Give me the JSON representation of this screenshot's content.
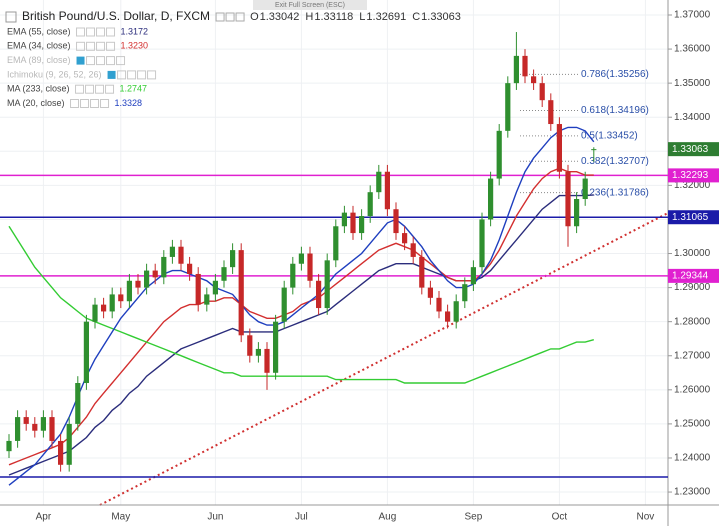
{
  "overlay": {
    "exit_hint": "Exit Full Screen (ESC)"
  },
  "chart_data": {
    "type": "candlestick",
    "title": "British Pound/U.S. Dollar, D, FXCM",
    "ohlc_labels": [
      "O",
      "H",
      "L",
      "C"
    ],
    "categories": [
      null,
      null,
      null,
      null,
      "Apr",
      null,
      null,
      null,
      null,
      null,
      null,
      null,
      null,
      "May",
      null,
      null,
      null,
      null,
      null,
      null,
      null,
      null,
      null,
      null,
      "Jun",
      null,
      null,
      null,
      null,
      null,
      null,
      null,
      null,
      null,
      "Jul",
      null,
      null,
      null,
      null,
      null,
      null,
      null,
      null,
      null,
      "Aug",
      null,
      null,
      null,
      null,
      null,
      null,
      null,
      null,
      null,
      "Sep",
      null,
      null,
      null,
      null,
      null,
      null,
      null,
      null,
      null,
      "Oct",
      null,
      null,
      null,
      null,
      null,
      null,
      null,
      null,
      null,
      "Nov",
      null,
      null
    ],
    "open": [
      1.242,
      1.245,
      1.252,
      1.25,
      1.248,
      1.252,
      1.245,
      1.238,
      1.25,
      1.262,
      1.28,
      1.285,
      1.283,
      1.288,
      1.286,
      1.292,
      1.29,
      1.295,
      1.293,
      1.299,
      1.302,
      1.297,
      1.294,
      1.285,
      1.288,
      1.292,
      1.296,
      1.301,
      1.276,
      1.27,
      1.272,
      1.265,
      1.28,
      1.29,
      1.297,
      1.3,
      1.292,
      1.284,
      1.298,
      1.308,
      1.312,
      1.306,
      1.311,
      1.318,
      1.324,
      1.313,
      1.306,
      1.303,
      1.299,
      1.29,
      1.287,
      1.283,
      1.28,
      1.286,
      1.291,
      1.296,
      1.31,
      1.322,
      1.336,
      1.35,
      1.358,
      1.352,
      1.35,
      1.345,
      1.338,
      1.324,
      1.308,
      1.316,
      1.33042,
      null,
      null,
      null,
      null,
      null,
      null,
      null,
      null
    ],
    "high": [
      1.247,
      1.254,
      1.254,
      1.252,
      1.254,
      1.254,
      1.247,
      1.252,
      1.264,
      1.282,
      1.287,
      1.287,
      1.29,
      1.29,
      1.294,
      1.294,
      1.297,
      1.297,
      1.301,
      1.304,
      1.304,
      1.299,
      1.296,
      1.29,
      1.294,
      1.298,
      1.303,
      1.303,
      1.278,
      1.274,
      1.274,
      1.282,
      1.292,
      1.299,
      1.302,
      1.302,
      1.294,
      1.3,
      1.31,
      1.314,
      1.314,
      1.313,
      1.32,
      1.326,
      1.326,
      1.315,
      1.308,
      1.305,
      1.301,
      1.292,
      1.289,
      1.285,
      1.288,
      1.293,
      1.298,
      1.312,
      1.324,
      1.338,
      1.352,
      1.365,
      1.36,
      1.354,
      1.352,
      1.347,
      1.34,
      1.326,
      1.318,
      1.324,
      1.33118,
      null,
      null,
      null,
      null,
      null,
      null,
      null,
      null
    ],
    "low": [
      1.24,
      1.243,
      1.248,
      1.246,
      1.246,
      1.243,
      1.236,
      1.236,
      1.248,
      1.26,
      1.278,
      1.281,
      1.281,
      1.284,
      1.284,
      1.288,
      1.288,
      1.291,
      1.291,
      1.297,
      1.295,
      1.292,
      1.283,
      1.283,
      1.286,
      1.29,
      1.294,
      1.274,
      1.268,
      1.268,
      1.26,
      1.263,
      1.278,
      1.288,
      1.295,
      1.29,
      1.282,
      1.282,
      1.296,
      1.306,
      1.304,
      1.304,
      1.309,
      1.316,
      1.311,
      1.304,
      1.301,
      1.297,
      1.288,
      1.285,
      1.281,
      1.278,
      1.278,
      1.284,
      1.289,
      1.294,
      1.308,
      1.32,
      1.334,
      1.348,
      1.35,
      1.348,
      1.343,
      1.336,
      1.322,
      1.302,
      1.306,
      1.314,
      1.32691,
      null,
      null,
      null,
      null,
      null,
      null,
      null,
      null
    ],
    "close": [
      1.245,
      1.252,
      1.25,
      1.248,
      1.252,
      1.245,
      1.238,
      1.25,
      1.262,
      1.28,
      1.285,
      1.283,
      1.288,
      1.286,
      1.292,
      1.29,
      1.295,
      1.293,
      1.299,
      1.302,
      1.297,
      1.294,
      1.285,
      1.288,
      1.292,
      1.296,
      1.301,
      1.276,
      1.27,
      1.272,
      1.265,
      1.28,
      1.29,
      1.297,
      1.3,
      1.292,
      1.284,
      1.298,
      1.308,
      1.312,
      1.306,
      1.311,
      1.318,
      1.324,
      1.313,
      1.306,
      1.303,
      1.299,
      1.29,
      1.287,
      1.283,
      1.28,
      1.286,
      1.291,
      1.296,
      1.31,
      1.322,
      1.336,
      1.35,
      1.358,
      1.352,
      1.35,
      1.345,
      1.338,
      1.324,
      1.308,
      1.316,
      1.322,
      1.33063,
      null,
      null,
      null,
      null,
      null,
      null,
      null,
      null
    ],
    "up_color": "#2f8f2f",
    "down_color": "#c62828",
    "last_color": "#2e7d32",
    "series": [
      {
        "name": "EMA (55, close)",
        "color": "#2b2d7c",
        "visible": true,
        "last": 1.3172,
        "values": [
          1.235,
          1.236,
          1.237,
          1.238,
          1.239,
          1.24,
          1.241,
          1.242,
          1.244,
          1.246,
          1.249,
          1.251,
          1.254,
          1.256,
          1.259,
          1.261,
          1.264,
          1.266,
          1.268,
          1.27,
          1.272,
          1.273,
          1.274,
          1.275,
          1.276,
          1.277,
          1.278,
          1.277,
          1.277,
          1.277,
          1.277,
          1.277,
          1.278,
          1.279,
          1.28,
          1.281,
          1.282,
          1.283,
          1.285,
          1.287,
          1.289,
          1.291,
          1.293,
          1.295,
          1.296,
          1.297,
          1.297,
          1.297,
          1.296,
          1.295,
          1.294,
          1.293,
          1.292,
          1.292,
          1.292,
          1.293,
          1.295,
          1.298,
          1.301,
          1.304,
          1.307,
          1.31,
          1.313,
          1.315,
          1.317,
          1.317,
          1.317,
          1.317,
          1.3172,
          null,
          null,
          null,
          null,
          null,
          null,
          null,
          null
        ]
      },
      {
        "name": "EMA (34, close)",
        "color": "#d32f2f",
        "visible": true,
        "last": {
          "value": 1.323,
          "label": "1.3230"
        },
        "values": [
          1.238,
          1.239,
          1.24,
          1.241,
          1.242,
          1.243,
          1.244,
          1.246,
          1.249,
          1.252,
          1.256,
          1.259,
          1.262,
          1.265,
          1.268,
          1.271,
          1.274,
          1.277,
          1.28,
          1.282,
          1.284,
          1.285,
          1.285,
          1.286,
          1.286,
          1.287,
          1.287,
          1.285,
          1.283,
          1.282,
          1.281,
          1.281,
          1.282,
          1.283,
          1.285,
          1.286,
          1.287,
          1.289,
          1.291,
          1.293,
          1.295,
          1.297,
          1.299,
          1.301,
          1.302,
          1.303,
          1.302,
          1.301,
          1.299,
          1.297,
          1.295,
          1.293,
          1.292,
          1.292,
          1.292,
          1.294,
          1.297,
          1.301,
          1.306,
          1.311,
          1.315,
          1.319,
          1.322,
          1.324,
          1.325,
          1.324,
          1.324,
          1.323,
          1.323,
          null,
          null,
          null,
          null,
          null,
          null,
          null,
          null
        ]
      },
      {
        "name": "EMA (89, close)",
        "color": "#b0b0b0",
        "visible": false
      },
      {
        "name": "Ichimoku (9, 26, 52, 26)",
        "color": "#b0b0b0",
        "visible": false
      },
      {
        "name": "MA (233, close)",
        "color": "#33cc33",
        "visible": true,
        "last": 1.2747,
        "values": [
          1.308,
          1.304,
          1.3,
          1.296,
          1.293,
          1.29,
          1.287,
          1.285,
          1.283,
          1.281,
          1.28,
          1.279,
          1.278,
          1.277,
          1.276,
          1.275,
          1.274,
          1.273,
          1.272,
          1.271,
          1.27,
          1.269,
          1.268,
          1.267,
          1.266,
          1.265,
          1.265,
          1.264,
          1.264,
          1.264,
          1.264,
          1.264,
          1.264,
          1.264,
          1.264,
          1.264,
          1.264,
          1.264,
          1.263,
          1.263,
          1.263,
          1.263,
          1.263,
          1.263,
          1.263,
          1.263,
          1.262,
          1.262,
          1.262,
          1.262,
          1.262,
          1.262,
          1.262,
          1.262,
          1.263,
          1.264,
          1.265,
          1.266,
          1.267,
          1.268,
          1.269,
          1.27,
          1.271,
          1.272,
          1.272,
          1.273,
          1.274,
          1.274,
          1.2747,
          null,
          null,
          null,
          null,
          null,
          null,
          null,
          null
        ]
      },
      {
        "name": "MA (20, close)",
        "color": "#1f3fbf",
        "visible": true,
        "last": 1.3328,
        "values": [
          1.232,
          1.234,
          1.236,
          1.238,
          1.241,
          1.244,
          1.247,
          1.252,
          1.258,
          1.264,
          1.269,
          1.273,
          1.277,
          1.281,
          1.284,
          1.287,
          1.29,
          1.292,
          1.294,
          1.295,
          1.295,
          1.294,
          1.293,
          1.292,
          1.29,
          1.289,
          1.288,
          1.285,
          1.282,
          1.28,
          1.279,
          1.279,
          1.28,
          1.282,
          1.284,
          1.286,
          1.288,
          1.291,
          1.294,
          1.296,
          1.298,
          1.3,
          1.303,
          1.306,
          1.309,
          1.31,
          1.308,
          1.305,
          1.302,
          1.298,
          1.295,
          1.292,
          1.29,
          1.29,
          1.291,
          1.294,
          1.298,
          1.304,
          1.311,
          1.318,
          1.324,
          1.328,
          1.331,
          1.334,
          1.336,
          1.337,
          1.337,
          1.336,
          1.3328,
          null,
          null,
          null,
          null,
          null,
          null,
          null,
          null
        ]
      }
    ],
    "levels": [
      {
        "value": 1.32293,
        "color": "#e020d0",
        "tagged": true
      },
      {
        "value": 1.31065,
        "color": "#1a1aa8",
        "tagged": true
      },
      {
        "value": 1.29344,
        "color": "#e020d0",
        "tagged": true
      },
      {
        "value": 1.2344,
        "color": "#1a1aa8",
        "tagged": false
      }
    ],
    "fib_levels": [
      {
        "value": 1.35256,
        "label": "0.786(1.35256)"
      },
      {
        "value": 1.34196,
        "label": "0.618(1.34196)"
      },
      {
        "value": 1.33452,
        "label": "0.5(1.33452)"
      },
      {
        "value": 1.32707,
        "label": "0.382(1.32707)"
      },
      {
        "value": 1.31786,
        "label": "0.236(1.31786)"
      }
    ],
    "fib_color": "#2a4fa8",
    "ylim": [
      1.2262,
      1.3744
    ],
    "yticks": [
      {
        "value": 1.23,
        "label": "1.23000"
      },
      {
        "value": 1.24,
        "label": "1.24000"
      },
      {
        "value": 1.25,
        "label": "1.25000"
      },
      {
        "value": 1.26,
        "label": "1.26000"
      },
      {
        "value": 1.27,
        "label": "1.27000"
      },
      {
        "value": 1.28,
        "label": "1.28000"
      },
      {
        "value": 1.29,
        "label": "1.29000"
      },
      {
        "value": 1.3,
        "label": "1.30000"
      },
      {
        "value": 1.31,
        "label": "1.31000"
      },
      {
        "value": 1.32,
        "label": "1.32000"
      },
      {
        "value": 1.33,
        "label": "1.33000"
      },
      {
        "value": 1.34,
        "label": "1.34000"
      },
      {
        "value": 1.35,
        "label": "1.35000"
      },
      {
        "value": 1.36,
        "label": "1.36000"
      },
      {
        "value": 1.37,
        "label": "1.37000"
      }
    ],
    "grid": true
  }
}
